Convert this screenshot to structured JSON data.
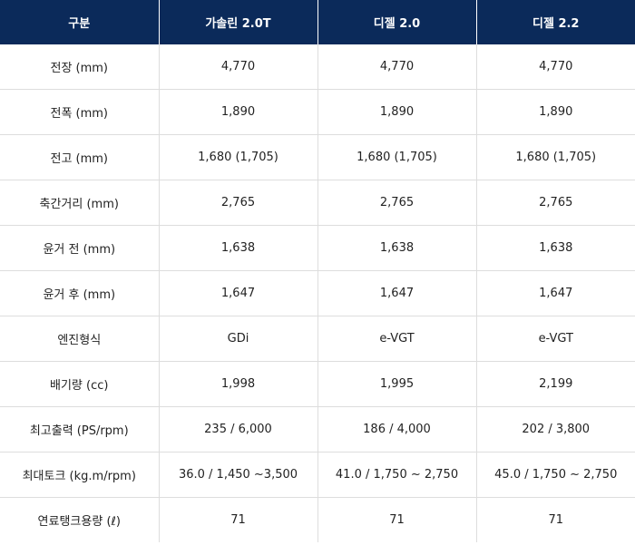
{
  "headers": [
    "구분",
    "가솔린 2.0T",
    "디젤 2.0",
    "디젤 2.2"
  ],
  "rows": [
    [
      "전장 (mm)",
      "4,770",
      "4,770",
      "4,770"
    ],
    [
      "전폭 (mm)",
      "1,890",
      "1,890",
      "1,890"
    ],
    [
      "전고 (mm)",
      "1,680 (1,705)",
      "1,680 (1,705)",
      "1,680 (1,705)"
    ],
    [
      "축간거리 (mm)",
      "2,765",
      "2,765",
      "2,765"
    ],
    [
      "윤거 전 (mm)",
      "1,638",
      "1,638",
      "1,638"
    ],
    [
      "윤거 후 (mm)",
      "1,647",
      "1,647",
      "1,647"
    ],
    [
      "엔진형식",
      "GDi",
      "e-VGT",
      "e-VGT"
    ],
    [
      "배기량 (cc)",
      "1,998",
      "1,995",
      "2,199"
    ],
    [
      "최고출력 (PS/rpm)",
      "235 / 6,000",
      "186 / 4,000",
      "202 / 3,800"
    ],
    [
      "최대토크 (kg.m/rpm)",
      "36.0 / 1,450 ~3,500",
      "41.0 / 1,750 ~ 2,750",
      "45.0 / 1,750 ~ 2,750"
    ],
    [
      "연료탱크용량 (ℓ)",
      "71",
      "71",
      "71"
    ]
  ],
  "colors": {
    "header_bg": "#0b2a5a",
    "header_text": "#ffffff",
    "border": "#dddddd",
    "text": "#222222"
  }
}
